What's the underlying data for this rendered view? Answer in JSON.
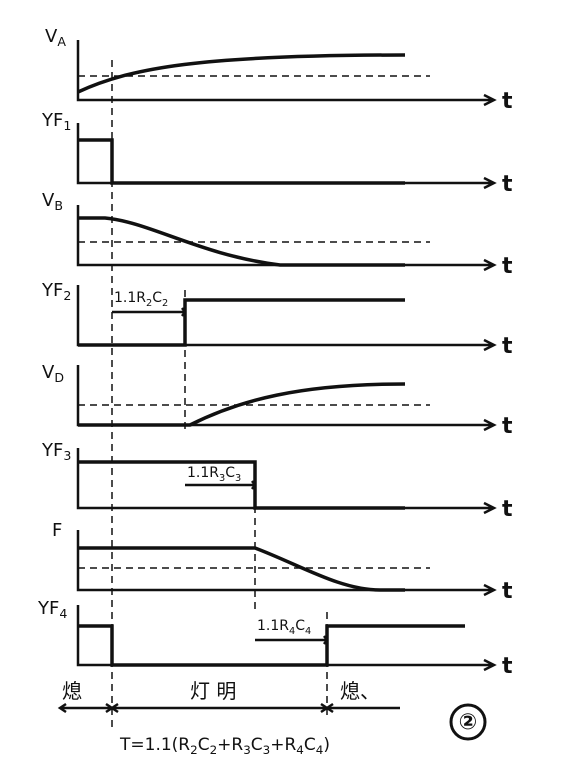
{
  "panels": [
    {
      "label": [
        "V",
        "A"
      ],
      "axis": "t"
    },
    {
      "label": [
        "YF",
        "1"
      ],
      "axis": "t"
    },
    {
      "label": [
        "V",
        "B"
      ],
      "axis": "t"
    },
    {
      "label": [
        "YF",
        "2"
      ],
      "axis": "t"
    },
    {
      "label": [
        "V",
        "D"
      ],
      "axis": "t"
    },
    {
      "label": [
        "YF",
        "3"
      ],
      "axis": "t"
    },
    {
      "label": [
        "F"
      ],
      "axis": "t"
    },
    {
      "label": [
        "YF",
        "4"
      ],
      "axis": "t"
    }
  ],
  "intervals": [
    [
      "1.1R",
      "2",
      "C",
      "2"
    ],
    [
      "1.1R",
      "3",
      "C",
      "3"
    ],
    [
      "1.1R",
      "4",
      "C",
      "4"
    ]
  ],
  "states": [
    "熄",
    "灯 明",
    "熄、"
  ],
  "formula": [
    "T=1.1(R",
    "2",
    "C",
    "2",
    "+R",
    "3",
    "C",
    "3",
    "+R",
    "4",
    "C",
    "4",
    ")"
  ],
  "figure_number": "②"
}
